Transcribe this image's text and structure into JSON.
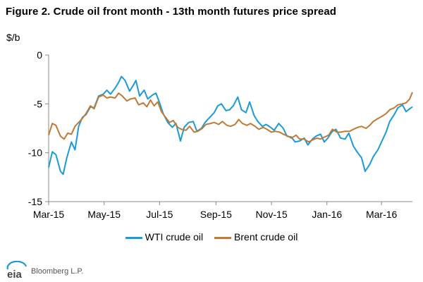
{
  "title": "Figure 2. Crude oil front month - 13th month futures price spread",
  "unit_label": "$/b",
  "footer": {
    "logo_text": "eia",
    "source": "Bloomberg L.P."
  },
  "colors": {
    "wti": "#1a9bd7",
    "brent": "#c07a34",
    "axis": "#888888"
  },
  "chart_data": {
    "type": "line",
    "ylabel": "$/b",
    "ylim": [
      -15,
      0
    ],
    "yticks": [
      0,
      -5,
      -10,
      -15
    ],
    "xlim": [
      0,
      400
    ],
    "xticks": [
      {
        "x": 0,
        "label": "Mar-15"
      },
      {
        "x": 61,
        "label": "May-15"
      },
      {
        "x": 122,
        "label": "Jul-15"
      },
      {
        "x": 184,
        "label": "Sep-15"
      },
      {
        "x": 245,
        "label": "Nov-15"
      },
      {
        "x": 306,
        "label": "Jan-16"
      },
      {
        "x": 366,
        "label": "Mar-16"
      }
    ],
    "grid": false,
    "legend": "bottom",
    "series": [
      {
        "name": "WTI crude oil",
        "points": [
          [
            0,
            -11.5
          ],
          [
            4,
            -9.9
          ],
          [
            8,
            -10.2
          ],
          [
            13,
            -11.9
          ],
          [
            16,
            -12.2
          ],
          [
            20,
            -10.5
          ],
          [
            25,
            -8.9
          ],
          [
            29,
            -9.7
          ],
          [
            33,
            -7.3
          ],
          [
            37,
            -6.4
          ],
          [
            41,
            -6.1
          ],
          [
            46,
            -5.3
          ],
          [
            50,
            -5.4
          ],
          [
            55,
            -4.2
          ],
          [
            60,
            -4.0
          ],
          [
            64,
            -3.6
          ],
          [
            68,
            -4.0
          ],
          [
            73,
            -3.4
          ],
          [
            77,
            -2.8
          ],
          [
            80,
            -2.2
          ],
          [
            84,
            -2.6
          ],
          [
            89,
            -3.7
          ],
          [
            93,
            -3.1
          ],
          [
            96,
            -2.6
          ],
          [
            100,
            -4.2
          ],
          [
            105,
            -3.6
          ],
          [
            109,
            -4.5
          ],
          [
            114,
            -4.1
          ],
          [
            118,
            -3.9
          ],
          [
            122,
            -4.9
          ],
          [
            126,
            -6.0
          ],
          [
            131,
            -6.9
          ],
          [
            136,
            -7.4
          ],
          [
            140,
            -7.0
          ],
          [
            145,
            -8.8
          ],
          [
            149,
            -7.4
          ],
          [
            154,
            -6.9
          ],
          [
            159,
            -6.8
          ],
          [
            163,
            -7.8
          ],
          [
            168,
            -7.5
          ],
          [
            172,
            -6.9
          ],
          [
            177,
            -6.4
          ],
          [
            182,
            -5.9
          ],
          [
            186,
            -5.2
          ],
          [
            190,
            -5.0
          ],
          [
            195,
            -5.7
          ],
          [
            199,
            -5.6
          ],
          [
            203,
            -5.2
          ],
          [
            208,
            -4.3
          ],
          [
            212,
            -5.6
          ],
          [
            217,
            -5.9
          ],
          [
            221,
            -4.8
          ],
          [
            226,
            -6.2
          ],
          [
            230,
            -6.8
          ],
          [
            235,
            -7.3
          ],
          [
            239,
            -7.1
          ],
          [
            244,
            -7.4
          ],
          [
            248,
            -7.7
          ],
          [
            253,
            -7.0
          ],
          [
            258,
            -7.5
          ],
          [
            262,
            -8.3
          ],
          [
            267,
            -8.4
          ],
          [
            271,
            -8.9
          ],
          [
            276,
            -8.8
          ],
          [
            281,
            -8.5
          ],
          [
            285,
            -9.2
          ],
          [
            290,
            -8.6
          ],
          [
            294,
            -8.3
          ],
          [
            299,
            -8.1
          ],
          [
            303,
            -8.9
          ],
          [
            307,
            -8.5
          ],
          [
            312,
            -7.8
          ],
          [
            316,
            -7.6
          ],
          [
            321,
            -8.5
          ],
          [
            326,
            -8.6
          ],
          [
            330,
            -8.0
          ],
          [
            335,
            -9.3
          ],
          [
            339,
            -9.9
          ],
          [
            344,
            -10.5
          ],
          [
            348,
            -11.9
          ],
          [
            353,
            -11.2
          ],
          [
            357,
            -10.4
          ],
          [
            362,
            -9.7
          ],
          [
            366,
            -8.9
          ],
          [
            371,
            -7.9
          ],
          [
            375,
            -6.8
          ],
          [
            380,
            -6.1
          ],
          [
            384,
            -5.4
          ],
          [
            389,
            -5.1
          ],
          [
            393,
            -5.8
          ],
          [
            397,
            -5.5
          ],
          [
            400,
            -5.3
          ]
        ]
      },
      {
        "name": "Brent crude oil",
        "points": [
          [
            0,
            -8.2
          ],
          [
            4,
            -7.0
          ],
          [
            8,
            -7.2
          ],
          [
            13,
            -8.3
          ],
          [
            17,
            -8.6
          ],
          [
            21,
            -8.0
          ],
          [
            25,
            -8.1
          ],
          [
            29,
            -7.3
          ],
          [
            33,
            -6.9
          ],
          [
            37,
            -6.5
          ],
          [
            41,
            -6.0
          ],
          [
            46,
            -5.2
          ],
          [
            50,
            -5.5
          ],
          [
            55,
            -4.3
          ],
          [
            60,
            -4.1
          ],
          [
            64,
            -4.4
          ],
          [
            68,
            -4.3
          ],
          [
            73,
            -4.4
          ],
          [
            77,
            -3.9
          ],
          [
            81,
            -4.2
          ],
          [
            86,
            -4.7
          ],
          [
            90,
            -4.5
          ],
          [
            95,
            -4.4
          ],
          [
            99,
            -5.1
          ],
          [
            104,
            -4.9
          ],
          [
            108,
            -5.3
          ],
          [
            112,
            -4.6
          ],
          [
            116,
            -5.2
          ],
          [
            120,
            -4.8
          ],
          [
            124,
            -5.8
          ],
          [
            128,
            -6.3
          ],
          [
            133,
            -6.9
          ],
          [
            137,
            -6.7
          ],
          [
            142,
            -7.4
          ],
          [
            146,
            -7.6
          ],
          [
            151,
            -7.7
          ],
          [
            155,
            -7.3
          ],
          [
            160,
            -7.9
          ],
          [
            164,
            -7.8
          ],
          [
            169,
            -7.5
          ],
          [
            173,
            -7.1
          ],
          [
            178,
            -7.0
          ],
          [
            182,
            -6.9
          ],
          [
            187,
            -7.1
          ],
          [
            191,
            -6.8
          ],
          [
            196,
            -7.2
          ],
          [
            200,
            -7.3
          ],
          [
            205,
            -7.1
          ],
          [
            209,
            -6.6
          ],
          [
            213,
            -7.0
          ],
          [
            218,
            -7.2
          ],
          [
            222,
            -7.0
          ],
          [
            227,
            -7.3
          ],
          [
            231,
            -7.6
          ],
          [
            236,
            -7.4
          ],
          [
            240,
            -7.6
          ],
          [
            245,
            -7.9
          ],
          [
            249,
            -7.8
          ],
          [
            254,
            -7.9
          ],
          [
            258,
            -8.1
          ],
          [
            263,
            -8.3
          ],
          [
            267,
            -8.5
          ],
          [
            272,
            -8.2
          ],
          [
            276,
            -8.6
          ],
          [
            281,
            -8.6
          ],
          [
            286,
            -8.9
          ],
          [
            290,
            -8.7
          ],
          [
            295,
            -8.5
          ],
          [
            299,
            -8.6
          ],
          [
            303,
            -8.4
          ],
          [
            308,
            -8.2
          ],
          [
            312,
            -7.6
          ],
          [
            317,
            -7.9
          ],
          [
            321,
            -7.9
          ],
          [
            326,
            -7.8
          ],
          [
            331,
            -7.8
          ],
          [
            335,
            -7.6
          ],
          [
            340,
            -7.4
          ],
          [
            344,
            -7.3
          ],
          [
            349,
            -7.5
          ],
          [
            353,
            -7.2
          ],
          [
            357,
            -6.8
          ],
          [
            362,
            -6.5
          ],
          [
            366,
            -6.3
          ],
          [
            371,
            -6.0
          ],
          [
            375,
            -5.6
          ],
          [
            380,
            -5.4
          ],
          [
            384,
            -5.1
          ],
          [
            389,
            -5.0
          ],
          [
            393,
            -4.9
          ],
          [
            397,
            -4.5
          ],
          [
            400,
            -3.8
          ]
        ]
      }
    ]
  }
}
